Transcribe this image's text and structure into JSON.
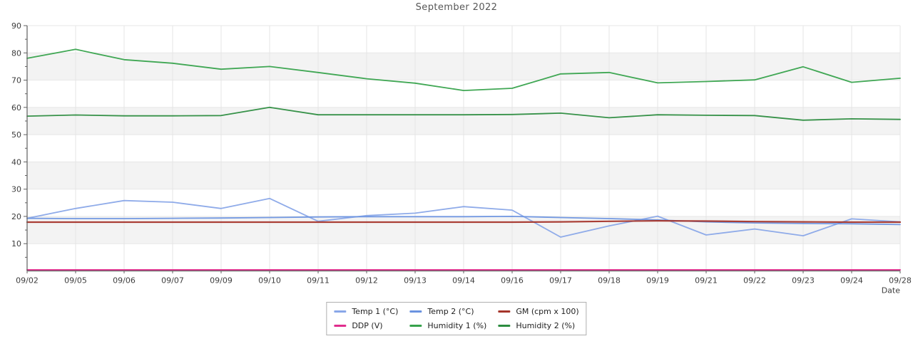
{
  "title": "September 2022",
  "chart_data": {
    "type": "line",
    "title": "September 2022",
    "xlabel": "Date",
    "ylabel": "",
    "ylim": [
      0,
      90
    ],
    "ytick_step": 10,
    "ytick_labels": [
      "10",
      "20",
      "30",
      "40",
      "50",
      "60",
      "70",
      "80",
      "90"
    ],
    "grid": true,
    "plot_style": "alternating gray horizontal bands every 10 units (10-20, 30-40, 50-60, 70-80)",
    "legend_position": "bottom-center",
    "categories": [
      "09/02",
      "09/05",
      "09/06",
      "09/07",
      "09/09",
      "09/10",
      "09/11",
      "09/12",
      "09/13",
      "09/14",
      "09/16",
      "09/17",
      "09/18",
      "09/19",
      "09/21",
      "09/22",
      "09/23",
      "09/24",
      "09/28"
    ],
    "series": [
      {
        "name": "Temp 1 (°C)",
        "color": "#89a7e8",
        "width": 1.8,
        "values": [
          19.3,
          22.9,
          25.8,
          25.2,
          22.9,
          26.6,
          18.2,
          20.3,
          21.2,
          23.6,
          22.3,
          12.4,
          16.5,
          20.1,
          13.2,
          15.4,
          12.9,
          19.1,
          18.0
        ]
      },
      {
        "name": "Temp 2 (°C)",
        "color": "#6b93e0",
        "width": 1.8,
        "values": [
          19.3,
          19.2,
          19.2,
          19.3,
          19.4,
          19.6,
          19.8,
          19.9,
          19.9,
          19.9,
          20.0,
          19.6,
          19.2,
          18.7,
          18.0,
          17.6,
          17.4,
          17.3,
          17.0
        ]
      },
      {
        "name": "GM (cpm x 100)",
        "color": "#a5352b",
        "width": 2.2,
        "values": [
          17.9,
          17.9,
          17.9,
          17.9,
          17.9,
          17.9,
          17.9,
          17.9,
          17.9,
          17.9,
          17.9,
          18.0,
          18.2,
          18.4,
          18.3,
          18.1,
          18.0,
          17.9,
          17.9
        ]
      },
      {
        "name": "DDP (V)",
        "color": "#e02d8d",
        "width": 2.0,
        "values": [
          0.4,
          0.4,
          0.4,
          0.4,
          0.4,
          0.4,
          0.4,
          0.4,
          0.4,
          0.4,
          0.4,
          0.4,
          0.4,
          0.4,
          0.4,
          0.4,
          0.4,
          0.4,
          0.4
        ]
      },
      {
        "name": "Humidity 1 (%)",
        "color": "#36a24b",
        "width": 1.8,
        "values": [
          78.0,
          81.3,
          77.5,
          76.2,
          74.0,
          75.0,
          72.8,
          70.5,
          68.9,
          66.2,
          67.0,
          72.3,
          72.8,
          69.0,
          69.5,
          70.1,
          74.9,
          69.2,
          70.7
        ]
      },
      {
        "name": "Humidity 2 (%)",
        "color": "#2c8c3f",
        "width": 1.8,
        "values": [
          56.8,
          57.2,
          56.9,
          56.9,
          57.0,
          60.0,
          57.3,
          57.3,
          57.3,
          57.3,
          57.4,
          57.9,
          56.2,
          57.3,
          57.1,
          57.0,
          55.3,
          55.8,
          55.6
        ]
      }
    ],
    "colors": {
      "band_fill": "#f3f3f3",
      "vgrid": "#e4e4e4",
      "hgrid": "#e7e7e7",
      "spine": "#5f5f5f",
      "tick_label": "#3d3d3d",
      "title": "#575757"
    }
  }
}
